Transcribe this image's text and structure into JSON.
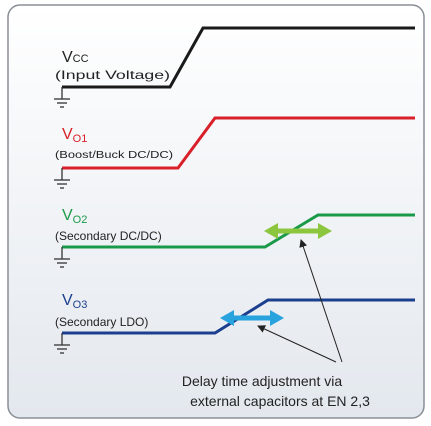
{
  "signals": [
    {
      "symbol": "V",
      "subscript": "CC",
      "description": "(Input Voltage)"
    },
    {
      "symbol": "V",
      "subscript": "O1",
      "description": "(Boost/Buck DC/DC)"
    },
    {
      "symbol": "V",
      "subscript": "O2",
      "description": "(Secondary DC/DC)"
    },
    {
      "symbol": "V",
      "subscript": "O3",
      "description": "(Secondary LDO)"
    }
  ],
  "annotation": {
    "lines": [
      "Delay time adjustment via",
      "external capacitors at EN 2,3"
    ]
  }
}
